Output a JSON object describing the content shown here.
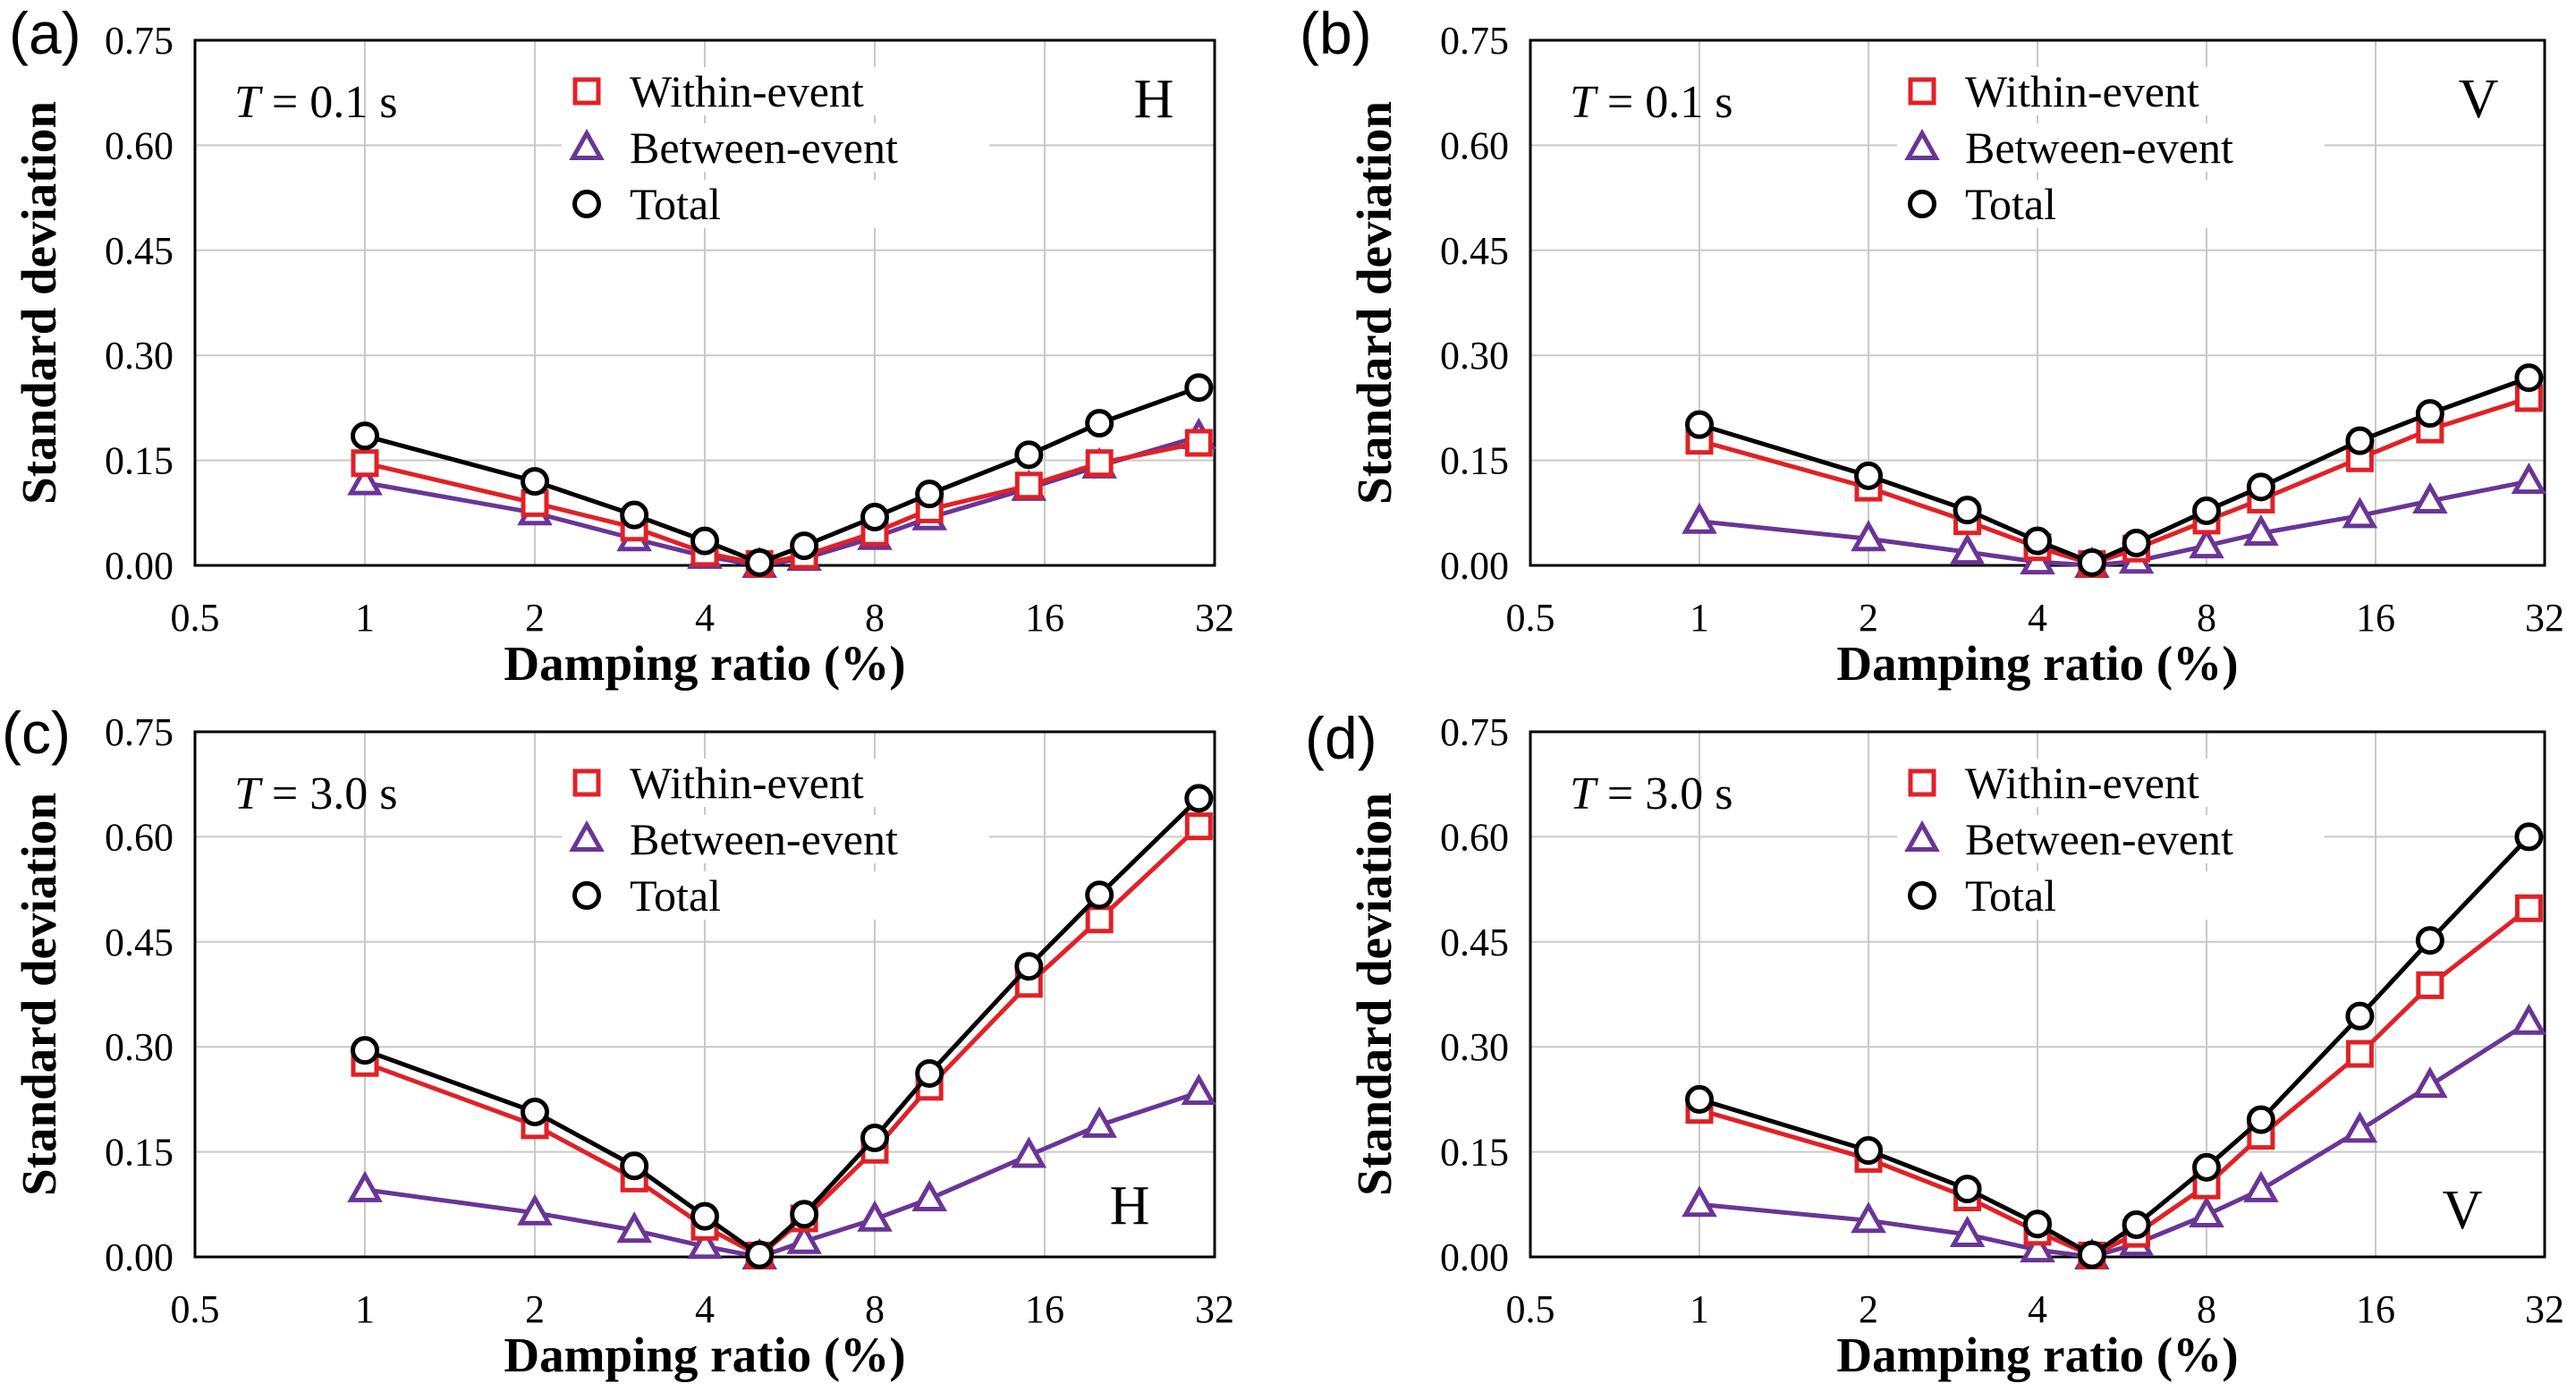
{
  "figure": {
    "background": "#ffffff",
    "colors": {
      "within_event": "#e02127",
      "between_event": "#6a3596",
      "total": "#000000",
      "gridline": "#c9c9c9",
      "axis_border": "#000000"
    }
  },
  "chart_data": [
    {
      "type": "line",
      "panel_label": "(a)",
      "annotation": {
        "symbol": "T",
        "rest": " = 0.1 s",
        "text": "T = 0.1 s"
      },
      "corner_label": "H",
      "corner_label_position": "top-right",
      "xlabel": "Damping ratio (%)",
      "ylabel": "Standard deviation",
      "xscale": "log2",
      "xlim": [
        0.5,
        32
      ],
      "ylim": [
        0,
        0.75
      ],
      "xticks": [
        "0.5",
        "1",
        "2",
        "4",
        "8",
        "16",
        "32"
      ],
      "yticks": [
        "0.00",
        "0.15",
        "0.30",
        "0.45",
        "0.60",
        "0.75"
      ],
      "grid": true,
      "legend_position": "top-center-inside",
      "x": [
        1,
        2,
        3,
        4,
        5,
        6,
        8,
        10,
        15,
        20,
        30
      ],
      "series": [
        {
          "name": "Within-event",
          "marker": "square",
          "color": "#e02127",
          "values": [
            0.146,
            0.089,
            0.054,
            0.018,
            0.002,
            0.014,
            0.047,
            0.08,
            0.114,
            0.146,
            0.175
          ]
        },
        {
          "name": "Between-event",
          "marker": "triangle",
          "color": "#6a3596",
          "values": [
            0.118,
            0.075,
            0.038,
            0.013,
            0.0,
            0.01,
            0.04,
            0.068,
            0.11,
            0.142,
            0.184
          ]
        },
        {
          "name": "Total",
          "marker": "circle",
          "color": "#000000",
          "values": [
            0.185,
            0.12,
            0.072,
            0.035,
            0.004,
            0.028,
            0.069,
            0.102,
            0.158,
            0.203,
            0.254
          ]
        }
      ]
    },
    {
      "type": "line",
      "panel_label": "(b)",
      "annotation": {
        "symbol": "T",
        "rest": " = 0.1 s",
        "text": "T = 0.1 s"
      },
      "corner_label": "V",
      "corner_label_position": "top-right",
      "xlabel": "Damping ratio (%)",
      "ylabel": "Standard deviation",
      "xscale": "log2",
      "xlim": [
        0.5,
        32
      ],
      "ylim": [
        0,
        0.75
      ],
      "xticks": [
        "0.5",
        "1",
        "2",
        "4",
        "8",
        "16",
        "32"
      ],
      "yticks": [
        "0.00",
        "0.15",
        "0.30",
        "0.45",
        "0.60",
        "0.75"
      ],
      "grid": true,
      "legend_position": "top-center-inside",
      "x": [
        1,
        2,
        3,
        4,
        5,
        6,
        8,
        10,
        15,
        20,
        30
      ],
      "series": [
        {
          "name": "Within-event",
          "marker": "square",
          "color": "#e02127",
          "values": [
            0.178,
            0.111,
            0.063,
            0.026,
            0.002,
            0.024,
            0.064,
            0.094,
            0.153,
            0.194,
            0.239
          ]
        },
        {
          "name": "Between-event",
          "marker": "triangle",
          "color": "#6a3596",
          "values": [
            0.063,
            0.038,
            0.019,
            0.005,
            0.0,
            0.006,
            0.028,
            0.046,
            0.071,
            0.092,
            0.12
          ]
        },
        {
          "name": "Total",
          "marker": "circle",
          "color": "#000000",
          "values": [
            0.201,
            0.128,
            0.079,
            0.035,
            0.004,
            0.032,
            0.078,
            0.112,
            0.178,
            0.217,
            0.268
          ]
        }
      ]
    },
    {
      "type": "line",
      "panel_label": "(c)",
      "annotation": {
        "symbol": "T",
        "rest": " = 3.0 s",
        "text": "T = 3.0 s"
      },
      "corner_label": "H",
      "corner_label_position": "bottom-right",
      "xlabel": "Damping ratio (%)",
      "ylabel": "Standard deviation",
      "xscale": "log2",
      "xlim": [
        0.5,
        32
      ],
      "ylim": [
        0,
        0.75
      ],
      "xticks": [
        "0.5",
        "1",
        "2",
        "4",
        "8",
        "16",
        "32"
      ],
      "yticks": [
        "0.00",
        "0.15",
        "0.30",
        "0.45",
        "0.60",
        "0.75"
      ],
      "grid": true,
      "legend_position": "top-center-inside",
      "x": [
        1,
        2,
        3,
        4,
        5,
        6,
        8,
        10,
        15,
        20,
        30
      ],
      "series": [
        {
          "name": "Within-event",
          "marker": "square",
          "color": "#e02127",
          "values": [
            0.277,
            0.188,
            0.112,
            0.043,
            0.002,
            0.055,
            0.153,
            0.243,
            0.39,
            0.482,
            0.615
          ]
        },
        {
          "name": "Between-event",
          "marker": "triangle",
          "color": "#6a3596",
          "values": [
            0.096,
            0.063,
            0.038,
            0.015,
            0.0,
            0.022,
            0.054,
            0.083,
            0.145,
            0.188,
            0.235
          ]
        },
        {
          "name": "Total",
          "marker": "circle",
          "color": "#000000",
          "values": [
            0.295,
            0.207,
            0.13,
            0.058,
            0.003,
            0.061,
            0.17,
            0.262,
            0.415,
            0.517,
            0.655
          ]
        }
      ]
    },
    {
      "type": "line",
      "panel_label": "(d)",
      "annotation": {
        "symbol": "T",
        "rest": " = 3.0 s",
        "text": "T = 3.0 s"
      },
      "corner_label": "V",
      "corner_label_position": "bottom-right",
      "xlabel": "Damping ratio (%)",
      "ylabel": "Standard deviation",
      "xscale": "log2",
      "xlim": [
        0.5,
        32
      ],
      "ylim": [
        0,
        0.75
      ],
      "xticks": [
        "0.5",
        "1",
        "2",
        "4",
        "8",
        "16",
        "32"
      ],
      "yticks": [
        "0.00",
        "0.15",
        "0.30",
        "0.45",
        "0.60",
        "0.75"
      ],
      "grid": true,
      "legend_position": "top-center-inside",
      "x": [
        1,
        2,
        3,
        4,
        5,
        6,
        8,
        10,
        15,
        20,
        30
      ],
      "series": [
        {
          "name": "Within-event",
          "marker": "square",
          "color": "#e02127",
          "values": [
            0.21,
            0.14,
            0.085,
            0.036,
            0.002,
            0.033,
            0.102,
            0.173,
            0.29,
            0.388,
            0.498
          ]
        },
        {
          "name": "Between-event",
          "marker": "triangle",
          "color": "#6a3596",
          "values": [
            0.075,
            0.052,
            0.032,
            0.01,
            0.0,
            0.019,
            0.06,
            0.096,
            0.181,
            0.245,
            0.335
          ]
        },
        {
          "name": "Total",
          "marker": "circle",
          "color": "#000000",
          "values": [
            0.225,
            0.152,
            0.097,
            0.047,
            0.003,
            0.046,
            0.128,
            0.196,
            0.344,
            0.452,
            0.6
          ]
        }
      ]
    }
  ]
}
